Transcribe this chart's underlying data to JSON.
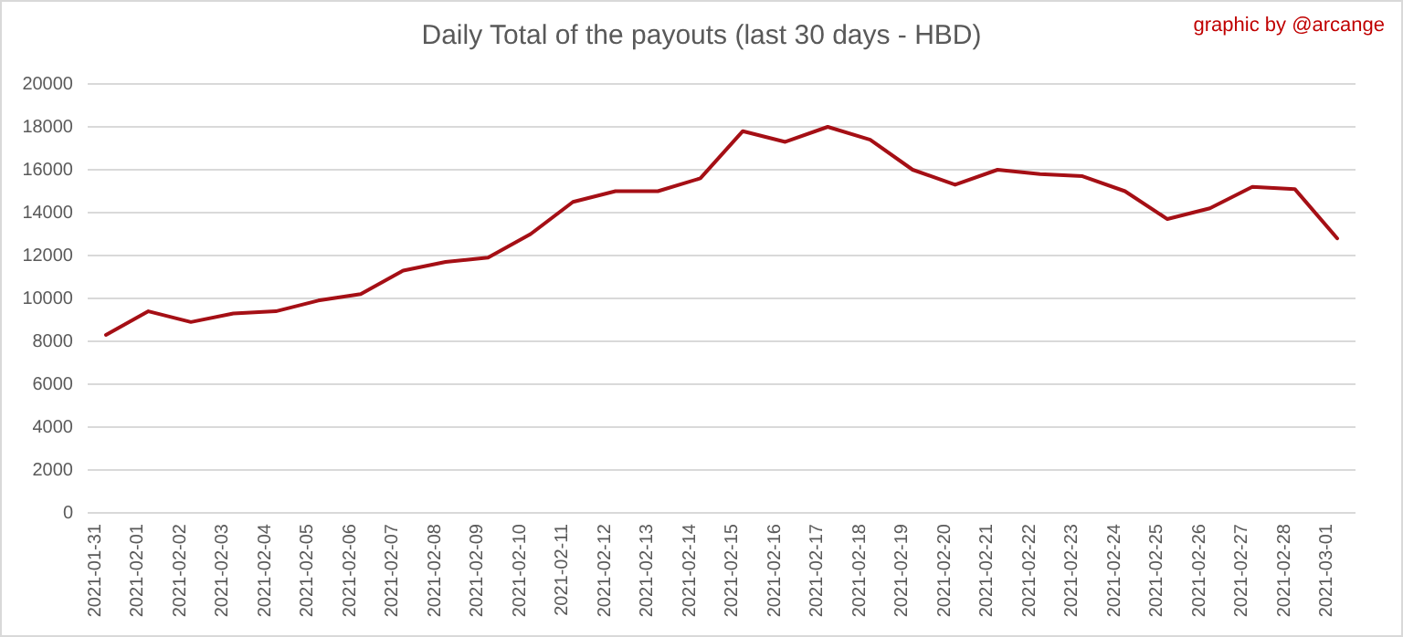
{
  "chart_data": {
    "type": "line",
    "title": "Daily Total of the payouts (last 30 days - HBD)",
    "annotations": [
      "graphic by @arcange"
    ],
    "categories": [
      "2021-01-31",
      "2021-02-01",
      "2021-02-02",
      "2021-02-03",
      "2021-02-04",
      "2021-02-05",
      "2021-02-06",
      "2021-02-07",
      "2021-02-08",
      "2021-02-09",
      "2021-02-10",
      "2021-02-11",
      "2021-02-12",
      "2021-02-13",
      "2021-02-14",
      "2021-02-15",
      "2021-02-16",
      "2021-02-17",
      "2021-02-18",
      "2021-02-19",
      "2021-02-20",
      "2021-02-21",
      "2021-02-22",
      "2021-02-23",
      "2021-02-24",
      "2021-02-25",
      "2021-02-26",
      "2021-02-27",
      "2021-02-28",
      "2021-03-01"
    ],
    "series": [
      {
        "color": "#a50f15",
        "values": [
          8300,
          9400,
          8900,
          9300,
          9400,
          9900,
          10200,
          11300,
          11700,
          11900,
          13000,
          14500,
          15000,
          15000,
          15600,
          17800,
          17300,
          18000,
          17400,
          16000,
          15300,
          16000,
          15800,
          15700,
          15000,
          13700,
          14200,
          15200,
          15100,
          12800
        ]
      }
    ],
    "ylim": [
      0,
      20000
    ],
    "yticks": [
      0,
      2000,
      4000,
      6000,
      8000,
      10000,
      12000,
      14000,
      16000,
      18000,
      20000
    ],
    "grid": "y",
    "marker": "none",
    "line_style": "solid"
  }
}
